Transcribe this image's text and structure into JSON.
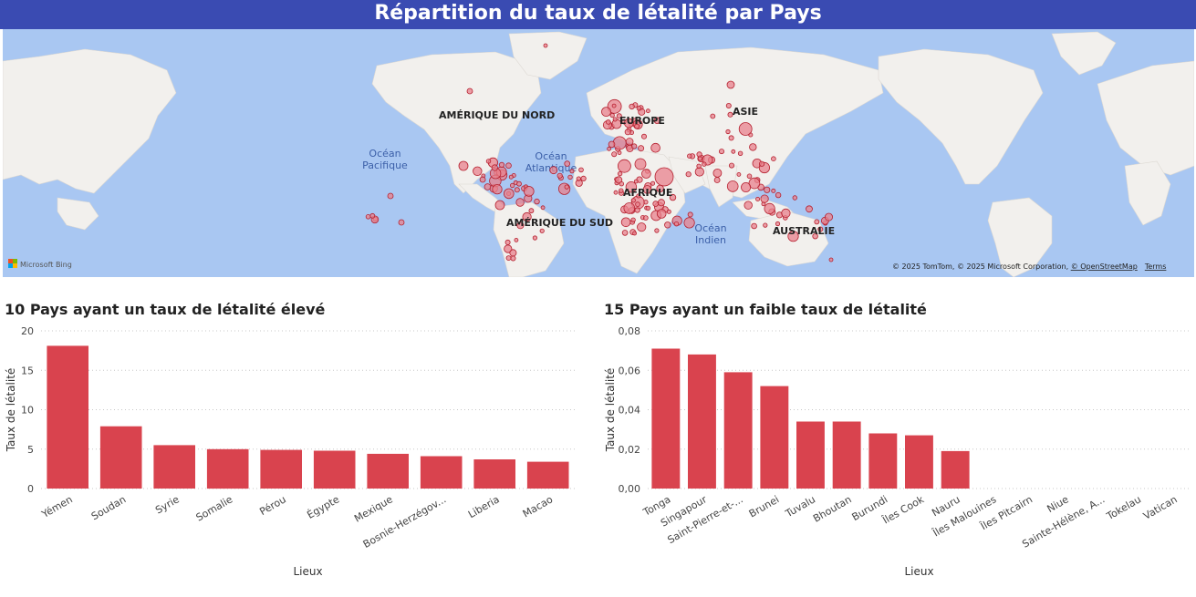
{
  "header": {
    "title": "Répartition du taux de létalité par Pays"
  },
  "map": {
    "continent_labels": [
      "AMÉRIQUE DU NORD",
      "EUROPE",
      "ASIE",
      "AFRIQUE",
      "AMÉRIQUE DU SUD",
      "AUSTRALIE"
    ],
    "ocean_labels": [
      {
        "line1": "Océan",
        "line2": "Pacifique"
      },
      {
        "line1": "Océan",
        "line2": "Atlantique"
      },
      {
        "line1": "Océan",
        "line2": "Indien"
      }
    ],
    "logo_text": "Microsoft Bing",
    "attribution": "© 2025 TomTom, © 2025 Microsoft Corporation,",
    "attribution_link": "© OpenStreetMap",
    "terms": "Terms",
    "colors": {
      "water": "#a9c7f2",
      "land": "#f2f0ed",
      "bubble_fill": "#e8828c",
      "bubble_stroke": "#b5202f"
    }
  },
  "chart_data": [
    {
      "type": "bar",
      "title": "10 Pays ayant un taux de létalité élevé",
      "xlabel": "Lieux",
      "ylabel": "Taux de létalité",
      "categories": [
        "Yémen",
        "Soudan",
        "Syrie",
        "Somalie",
        "Pérou",
        "Égypte",
        "Mexique",
        "Bosnie-Herzégov...",
        "Liberia",
        "Macao"
      ],
      "values": [
        18.1,
        7.9,
        5.5,
        5.0,
        4.9,
        4.8,
        4.4,
        4.1,
        3.7,
        3.4
      ],
      "ylim": [
        0,
        20
      ],
      "yticks": [
        0,
        5,
        10,
        15,
        20
      ],
      "ytick_labels": [
        "0",
        "5",
        "10",
        "15",
        "20"
      ],
      "color": "#d9434e",
      "grid": true
    },
    {
      "type": "bar",
      "title": "15 Pays ayant un faible taux de létalité",
      "xlabel": "Lieux",
      "ylabel": "Taux de létalité",
      "categories": [
        "Tonga",
        "Singapour",
        "Saint-Pierre-et-...",
        "Brunei",
        "Tuvalu",
        "Bhoutan",
        "Burundi",
        "Îles Cook",
        "Nauru",
        "Îles Malouines",
        "Îles Pitcairn",
        "Niue",
        "Sainte-Hélène, A...",
        "Tokelau",
        "Vatican"
      ],
      "values": [
        0.071,
        0.068,
        0.059,
        0.052,
        0.034,
        0.034,
        0.028,
        0.027,
        0.019,
        0,
        0,
        0,
        0,
        0,
        0
      ],
      "ylim": [
        0,
        0.08
      ],
      "yticks": [
        0,
        0.02,
        0.04,
        0.06,
        0.08
      ],
      "ytick_labels": [
        "0,00",
        "0,02",
        "0,04",
        "0,06",
        "0,08"
      ],
      "color": "#d9434e",
      "grid": true
    }
  ]
}
